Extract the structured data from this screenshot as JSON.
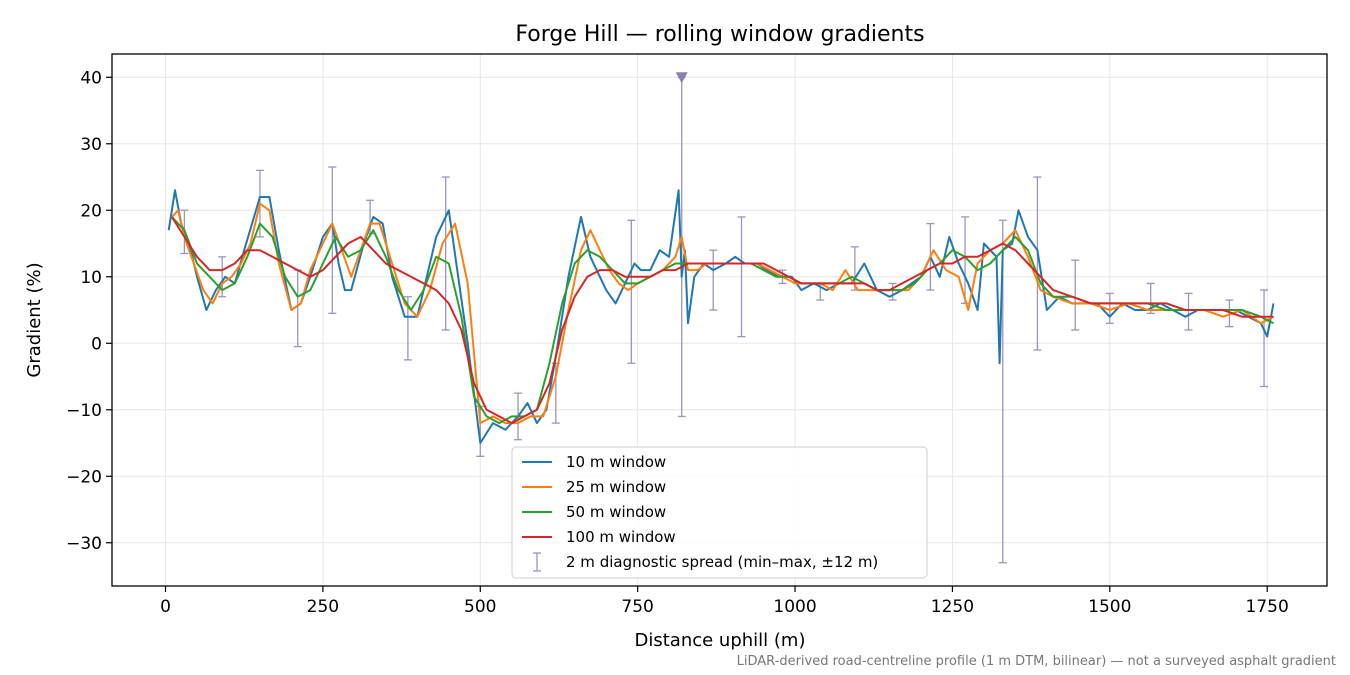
{
  "chart_data": {
    "type": "line",
    "title": "Forge Hill — rolling window gradients",
    "xlabel": "Distance uphill (m)",
    "ylabel": "Gradient (%)",
    "xlim": [
      -85,
      1845
    ],
    "ylim": [
      -36.5,
      43.5
    ],
    "xticks": [
      0,
      250,
      500,
      750,
      1000,
      1250,
      1500,
      1750
    ],
    "yticks": [
      -30,
      -20,
      -10,
      0,
      10,
      20,
      30,
      40
    ],
    "tick_labels_x": [
      "0",
      "250",
      "500",
      "750",
      "1000",
      "1250",
      "1500",
      "1750"
    ],
    "tick_labels_y": [
      "−30",
      "−20",
      "−10",
      "0",
      "10",
      "20",
      "30",
      "40"
    ],
    "grid": true,
    "legend_position": "lower-center",
    "footnote": "LiDAR-derived road-centreline profile (1 m DTM, bilinear) — not a surveyed asphalt gradient",
    "series": [
      {
        "name": "10 m window",
        "color": "#1f77b4",
        "x": [
          5,
          15,
          25,
          40,
          50,
          65,
          80,
          95,
          110,
          125,
          150,
          165,
          180,
          200,
          215,
          230,
          250,
          265,
          275,
          285,
          295,
          315,
          330,
          345,
          360,
          380,
          400,
          415,
          430,
          450,
          465,
          480,
          500,
          520,
          540,
          560,
          575,
          590,
          605,
          620,
          640,
          660,
          675,
          690,
          700,
          715,
          730,
          745,
          755,
          770,
          785,
          800,
          815,
          820,
          825,
          830,
          840,
          855,
          870,
          890,
          905,
          920,
          940,
          955,
          975,
          995,
          1010,
          1030,
          1050,
          1070,
          1090,
          1110,
          1130,
          1150,
          1170,
          1185,
          1200,
          1215,
          1230,
          1245,
          1260,
          1275,
          1290,
          1300,
          1320,
          1325,
          1330,
          1345,
          1355,
          1370,
          1385,
          1400,
          1420,
          1440,
          1460,
          1480,
          1500,
          1520,
          1540,
          1560,
          1580,
          1600,
          1620,
          1640,
          1660,
          1680,
          1700,
          1720,
          1740,
          1750,
          1760
        ],
        "values": [
          17,
          23,
          18,
          14,
          10,
          5,
          8,
          10,
          9,
          14,
          22,
          22,
          14,
          5,
          6,
          10,
          16,
          18,
          12,
          8,
          8,
          15,
          19,
          18,
          10,
          4,
          4,
          10,
          16,
          20,
          10,
          0,
          -15,
          -12,
          -13,
          -11,
          -9,
          -12,
          -10,
          -2,
          10,
          19,
          13,
          10,
          8,
          6,
          9,
          12,
          11,
          11,
          14,
          13,
          23,
          10,
          14,
          3,
          10,
          12,
          11,
          12,
          13,
          12,
          12,
          11,
          10,
          10,
          8,
          9,
          8,
          9,
          9,
          12,
          8,
          7,
          8,
          9,
          10,
          13,
          10,
          16,
          12,
          9,
          5,
          15,
          13,
          -3,
          14,
          15,
          20,
          16,
          14,
          5,
          7,
          6,
          6,
          6,
          4,
          6,
          5,
          5,
          6,
          5,
          4,
          5,
          5,
          5,
          5,
          4,
          3,
          1,
          6
        ]
      },
      {
        "name": "25 m window",
        "color": "#ff7f0e",
        "x": [
          10,
          20,
          30,
          45,
          60,
          75,
          90,
          105,
          120,
          135,
          150,
          165,
          180,
          200,
          215,
          230,
          250,
          265,
          280,
          295,
          310,
          325,
          340,
          360,
          380,
          400,
          420,
          440,
          460,
          480,
          500,
          520,
          540,
          560,
          580,
          600,
          620,
          640,
          660,
          675,
          690,
          705,
          720,
          735,
          750,
          770,
          790,
          810,
          820,
          830,
          845,
          860,
          880,
          900,
          920,
          940,
          960,
          980,
          1000,
          1020,
          1040,
          1060,
          1080,
          1100,
          1120,
          1140,
          1160,
          1180,
          1200,
          1220,
          1240,
          1260,
          1275,
          1290,
          1310,
          1330,
          1350,
          1370,
          1390,
          1410,
          1440,
          1470,
          1500,
          1530,
          1560,
          1590,
          1620,
          1650,
          1680,
          1710,
          1740,
          1760
        ],
        "values": [
          19,
          20,
          16,
          12,
          8,
          6,
          9,
          10,
          12,
          15,
          21,
          20,
          12,
          5,
          6,
          11,
          15,
          18,
          14,
          10,
          14,
          18,
          18,
          12,
          6,
          4,
          8,
          15,
          18,
          9,
          -12,
          -11,
          -12,
          -12,
          -11,
          -11,
          -5,
          5,
          14,
          17,
          14,
          11,
          9,
          8,
          9,
          10,
          11,
          13,
          16,
          11,
          11,
          12,
          12,
          12,
          12,
          12,
          11,
          10,
          9,
          9,
          9,
          8,
          11,
          8,
          8,
          8,
          8,
          8,
          10,
          14,
          11,
          10,
          5,
          12,
          14,
          15,
          17,
          13,
          8,
          7,
          6,
          6,
          5,
          6,
          5,
          5,
          5,
          5,
          4,
          5,
          3,
          4
        ]
      },
      {
        "name": "50 m window",
        "color": "#2ca02c",
        "x": [
          10,
          30,
          50,
          70,
          90,
          110,
          130,
          150,
          170,
          190,
          210,
          230,
          250,
          270,
          290,
          310,
          330,
          350,
          370,
          390,
          410,
          430,
          450,
          470,
          490,
          510,
          530,
          550,
          570,
          590,
          610,
          630,
          650,
          670,
          690,
          710,
          730,
          750,
          770,
          790,
          810,
          830,
          850,
          870,
          890,
          910,
          930,
          950,
          970,
          990,
          1010,
          1030,
          1050,
          1070,
          1090,
          1110,
          1130,
          1150,
          1170,
          1190,
          1210,
          1230,
          1250,
          1270,
          1290,
          1310,
          1330,
          1350,
          1370,
          1390,
          1410,
          1440,
          1470,
          1500,
          1530,
          1560,
          1590,
          1620,
          1650,
          1680,
          1710,
          1740,
          1760
        ],
        "values": [
          19,
          17,
          12,
          10,
          8,
          9,
          13,
          18,
          16,
          10,
          7,
          8,
          12,
          16,
          13,
          14,
          17,
          13,
          8,
          5,
          8,
          13,
          12,
          4,
          -8,
          -11,
          -12,
          -11,
          -11,
          -10,
          -3,
          6,
          12,
          14,
          13,
          11,
          9,
          9,
          10,
          11,
          12,
          12,
          12,
          12,
          12,
          12,
          12,
          11,
          10,
          10,
          9,
          9,
          9,
          9,
          10,
          9,
          8,
          8,
          8,
          9,
          11,
          12,
          14,
          13,
          11,
          12,
          14,
          16,
          14,
          9,
          7,
          7,
          6,
          6,
          6,
          6,
          5,
          5,
          5,
          5,
          5,
          4,
          3
        ]
      },
      {
        "name": "100 m window",
        "color": "#d62728",
        "x": [
          10,
          30,
          50,
          70,
          90,
          110,
          130,
          150,
          170,
          190,
          210,
          230,
          250,
          270,
          290,
          310,
          330,
          350,
          370,
          390,
          410,
          430,
          450,
          470,
          490,
          510,
          530,
          550,
          570,
          590,
          610,
          630,
          650,
          670,
          690,
          710,
          730,
          750,
          770,
          790,
          810,
          830,
          850,
          870,
          890,
          910,
          930,
          950,
          970,
          990,
          1010,
          1030,
          1050,
          1070,
          1090,
          1110,
          1130,
          1150,
          1170,
          1190,
          1210,
          1230,
          1250,
          1270,
          1290,
          1310,
          1330,
          1350,
          1370,
          1390,
          1410,
          1440,
          1470,
          1500,
          1530,
          1560,
          1590,
          1620,
          1650,
          1680,
          1710,
          1740,
          1760
        ],
        "values": [
          19,
          16,
          13,
          11,
          11,
          12,
          14,
          14,
          13,
          12,
          11,
          10,
          11,
          13,
          15,
          16,
          14,
          12,
          11,
          10,
          9,
          8,
          6,
          2,
          -6,
          -10,
          -11,
          -12,
          -11,
          -10,
          -6,
          2,
          7,
          10,
          11,
          11,
          10,
          10,
          10,
          11,
          11,
          12,
          12,
          12,
          12,
          12,
          12,
          12,
          11,
          10,
          9,
          9,
          9,
          9,
          9,
          9,
          8,
          8,
          9,
          10,
          11,
          12,
          12,
          13,
          13,
          14,
          15,
          14,
          12,
          10,
          8,
          7,
          6,
          6,
          6,
          6,
          6,
          5,
          5,
          5,
          4,
          4,
          4
        ]
      }
    ],
    "diagnostic_spread": {
      "name": "2 m diagnostic spread (min–max, ±12 m)",
      "color": "#9b94be",
      "x": [
        30,
        90,
        150,
        210,
        265,
        325,
        385,
        445,
        500,
        560,
        620,
        740,
        820,
        870,
        915,
        980,
        1040,
        1095,
        1155,
        1215,
        1270,
        1330,
        1385,
        1445,
        1500,
        1565,
        1625,
        1690,
        1745
      ],
      "low": [
        13.5,
        7,
        16,
        -0.5,
        4.5,
        16.5,
        -2.5,
        2,
        -17,
        -14.5,
        -12,
        -3,
        -11,
        5,
        1,
        9,
        6.5,
        8,
        6.5,
        8,
        6,
        -33,
        -1,
        2,
        3,
        4.5,
        2,
        2.5,
        -6.5
      ],
      "high": [
        20,
        13,
        26,
        11,
        26.5,
        21.5,
        7,
        25,
        -9.5,
        -7.5,
        -3,
        18.5,
        40,
        14,
        19,
        11,
        9,
        14.5,
        9,
        18,
        19,
        18.5,
        25,
        12.5,
        7.5,
        9,
        7.5,
        6.5,
        8
      ]
    },
    "marker": {
      "x": 820,
      "y": 40,
      "color": "#8a7fb0"
    }
  }
}
